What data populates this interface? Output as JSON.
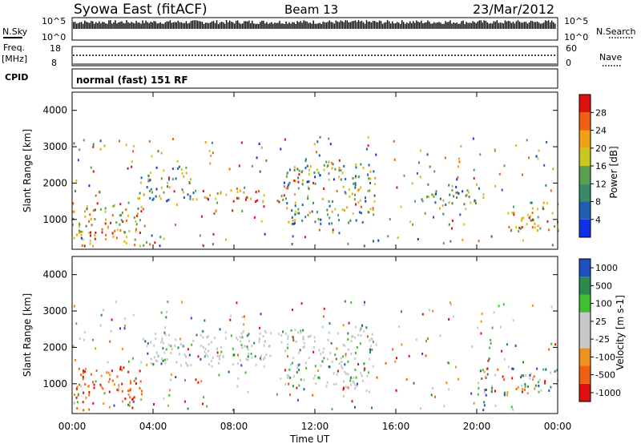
{
  "header": {
    "station": "Syowa East (fitACF)",
    "beam": "Beam 13",
    "date": "23/Mar/2012"
  },
  "side_labels": {
    "nsky": "N.Sky",
    "freq": "Freq.",
    "freq_unit": "[MHz]",
    "cpid": "CPID",
    "nsearch": "N.Search",
    "nave": "Nave"
  },
  "noise_axis": {
    "left_ticks": [
      "10^5",
      "10^0"
    ],
    "right_ticks": [
      "10^5",
      "10^0"
    ]
  },
  "freq_axis": {
    "left_ticks": [
      "18",
      "8"
    ],
    "right_ticks": [
      "60",
      "0"
    ]
  },
  "cpid_label": "normal (fast) 151 RF",
  "time_axis": {
    "label": "Time UT",
    "ticks": [
      "00:00",
      "04:00",
      "08:00",
      "12:00",
      "16:00",
      "20:00",
      "00:00"
    ]
  },
  "chart_data": [
    {
      "type": "heatmap",
      "ylabel": "Slant Range [km]",
      "ylim": [
        180,
        4500
      ],
      "xlim_hours": [
        0,
        24
      ],
      "yticks": [
        "1000",
        "2000",
        "3000",
        "4000"
      ],
      "colorbar": {
        "label": "Power [dB]",
        "ticks": [
          "4",
          "8",
          "12",
          "16",
          "20",
          "24",
          "28"
        ],
        "range": [
          0,
          32
        ]
      },
      "scatter_regions_hours_km": [
        {
          "t": [
            0.0,
            3.5
          ],
          "r": [
            300,
            1500
          ],
          "level": "high"
        },
        {
          "t": [
            3.5,
            6.0
          ],
          "r": [
            1500,
            2500
          ],
          "level": "mid"
        },
        {
          "t": [
            6.0,
            10.5
          ],
          "r": [
            1500,
            1900
          ],
          "level": "high"
        },
        {
          "t": [
            10.5,
            15.0
          ],
          "r": [
            900,
            2600
          ],
          "level": "mid"
        },
        {
          "t": [
            17.5,
            20.5
          ],
          "r": [
            1400,
            2000
          ],
          "level": "mid"
        },
        {
          "t": [
            21.5,
            24.0
          ],
          "r": [
            700,
            1500
          ],
          "level": "high"
        }
      ]
    },
    {
      "type": "heatmap",
      "ylabel": "Slant Range [km]",
      "ylim": [
        180,
        4500
      ],
      "xlim_hours": [
        0,
        24
      ],
      "yticks": [
        "1000",
        "2000",
        "3000",
        "4000"
      ],
      "colorbar": {
        "label": "Velocity [m s-1]",
        "ticks": [
          "1000",
          "500",
          "100",
          "25",
          "-25",
          "-100",
          "-500",
          "-1000"
        ]
      },
      "scatter_regions_hours_km": [
        {
          "t": [
            0.0,
            3.5
          ],
          "r": [
            300,
            1500
          ],
          "level": "negative"
        },
        {
          "t": [
            3.5,
            10.5
          ],
          "r": [
            1500,
            2500
          ],
          "level": "ground"
        },
        {
          "t": [
            10.5,
            15.0
          ],
          "r": [
            900,
            2600
          ],
          "level": "ground"
        },
        {
          "t": [
            20.0,
            24.0
          ],
          "r": [
            700,
            1500
          ],
          "level": "mixed"
        }
      ]
    }
  ],
  "colors": {
    "power": [
      "#1030e8",
      "#1e5fb0",
      "#3a8a6a",
      "#5aa050",
      "#c8c820",
      "#f0a010",
      "#f06010",
      "#e01010"
    ],
    "velocity": [
      "#e01010",
      "#f06010",
      "#f09020",
      "#c8c8c8",
      "#c8c8c8",
      "#40c030",
      "#2a8a50",
      "#2050c0"
    ]
  }
}
